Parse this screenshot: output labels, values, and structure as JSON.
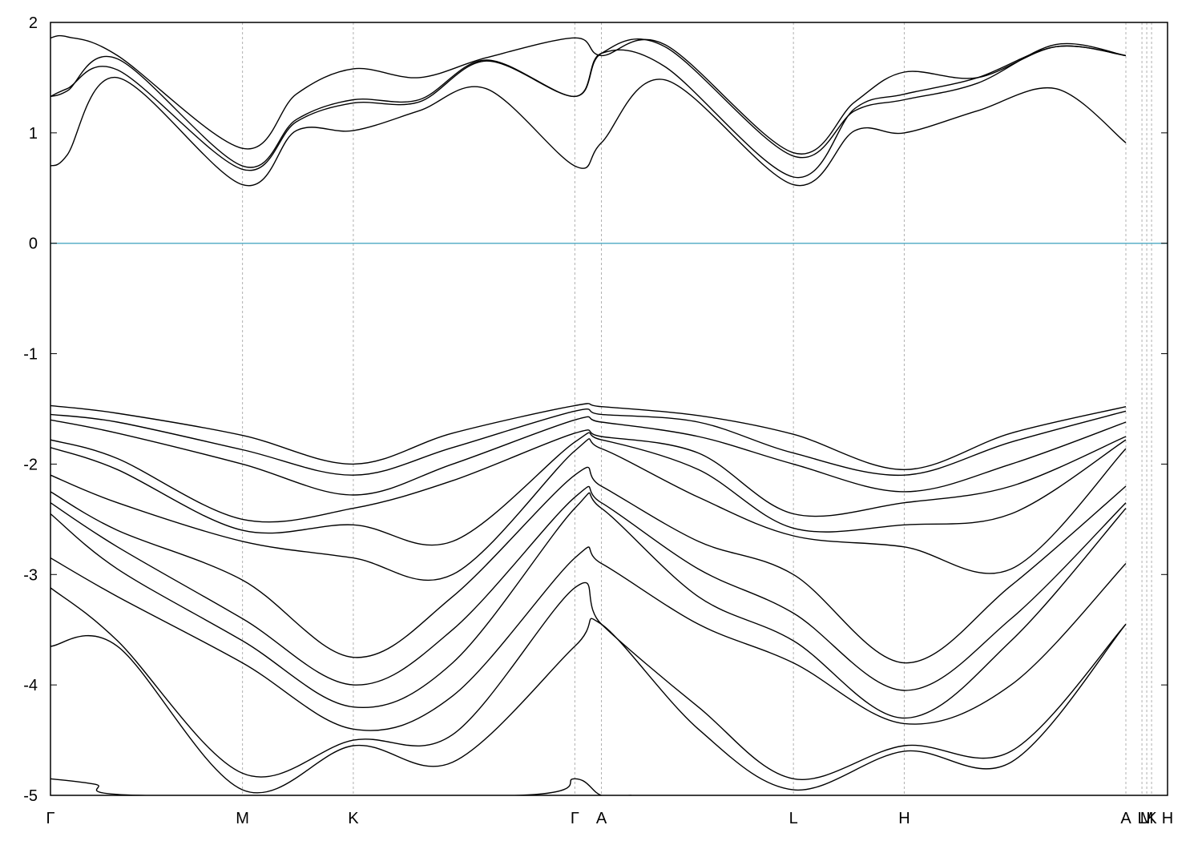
{
  "chart_data": {
    "type": "line",
    "title": "",
    "xlabel": "",
    "ylabel": "",
    "ylim": [
      -5,
      2
    ],
    "yticks": [
      2,
      1,
      0,
      -1,
      -2,
      -3,
      -4,
      -5
    ],
    "ytick_labels": [
      "2",
      "1",
      "0",
      "-1",
      "-2",
      "-3",
      "-4",
      "-5"
    ],
    "xlim": [
      0,
      1
    ],
    "kpoints": [
      {
        "label": "Γ",
        "x": 0.0
      },
      {
        "label": "M",
        "x": 0.1719
      },
      {
        "label": "K",
        "x": 0.2711
      },
      {
        "label": "Γ",
        "x": 0.4694
      },
      {
        "label": "A",
        "x": 0.4932
      },
      {
        "label": "L",
        "x": 0.6651
      },
      {
        "label": "H",
        "x": 0.7643
      },
      {
        "label": "A",
        "x": 0.9627
      },
      {
        "label": "L",
        "x": 0.9771
      },
      {
        "label": "M",
        "x": 0.9814
      },
      {
        "label": "K",
        "x": 0.9857
      },
      {
        "label": "H",
        "x": 1.0
      }
    ],
    "fermi_level": 0,
    "colors": {
      "bands": "#000000",
      "fermi": "#5bb0c8",
      "kline": "#b0b0b0"
    },
    "grid": "vertical dashed at k-points",
    "legend": "none",
    "bands": [
      {
        "x": [
          0,
          0.015,
          0.06,
          0.1719,
          0.22,
          0.2711,
          0.33,
          0.39,
          0.4694,
          0.4932,
          0.55,
          0.6651,
          0.72,
          0.7643,
          0.83,
          0.9,
          0.9627
        ],
        "values": [
          1.86,
          1.87,
          1.7,
          0.86,
          1.35,
          1.58,
          1.5,
          1.68,
          1.86,
          1.7,
          1.8,
          0.82,
          1.28,
          1.55,
          1.5,
          1.78,
          1.7
        ]
      },
      {
        "x": [
          0,
          0.015,
          0.06,
          0.1719,
          0.22,
          0.2711,
          0.33,
          0.39,
          0.4694,
          0.4932,
          0.55,
          0.6651,
          0.72,
          0.7643,
          0.83,
          0.9,
          0.9627
        ],
        "values": [
          1.33,
          1.38,
          1.67,
          0.7,
          1.12,
          1.3,
          1.3,
          1.66,
          1.33,
          1.72,
          1.78,
          0.79,
          1.2,
          1.3,
          1.45,
          1.8,
          1.7
        ]
      },
      {
        "x": [
          0,
          0.015,
          0.06,
          0.1719,
          0.22,
          0.2711,
          0.33,
          0.39,
          0.4694,
          0.4932,
          0.55,
          0.6651,
          0.72,
          0.7643,
          0.83,
          0.9,
          0.9627
        ],
        "values": [
          1.33,
          1.4,
          1.57,
          0.67,
          1.1,
          1.27,
          1.28,
          1.65,
          1.33,
          1.72,
          1.6,
          0.6,
          1.22,
          1.35,
          1.5,
          1.78,
          1.7
        ]
      },
      {
        "x": [
          0,
          0.015,
          0.06,
          0.1719,
          0.22,
          0.2711,
          0.33,
          0.39,
          0.4694,
          0.4932,
          0.55,
          0.6651,
          0.72,
          0.7643,
          0.83,
          0.9,
          0.9627
        ],
        "values": [
          0.7,
          0.8,
          1.5,
          0.53,
          1.02,
          1.02,
          1.2,
          1.4,
          0.7,
          0.91,
          1.48,
          0.53,
          1.02,
          1.0,
          1.2,
          1.4,
          0.91
        ]
      },
      {
        "x": [
          0,
          0.06,
          0.1719,
          0.2711,
          0.36,
          0.4694,
          0.4932,
          0.58,
          0.6651,
          0.7643,
          0.86,
          0.9627
        ],
        "values": [
          -1.47,
          -1.54,
          -1.74,
          -2.0,
          -1.72,
          -1.47,
          -1.48,
          -1.56,
          -1.73,
          -2.05,
          -1.72,
          -1.48
        ]
      },
      {
        "x": [
          0,
          0.06,
          0.1719,
          0.2711,
          0.36,
          0.4694,
          0.4932,
          0.58,
          0.6651,
          0.7643,
          0.86,
          0.9627
        ],
        "values": [
          -1.55,
          -1.62,
          -1.87,
          -2.1,
          -1.85,
          -1.52,
          -1.55,
          -1.62,
          -1.9,
          -2.1,
          -1.8,
          -1.52
        ]
      },
      {
        "x": [
          0,
          0.06,
          0.1719,
          0.2711,
          0.36,
          0.4694,
          0.4932,
          0.58,
          0.6651,
          0.7643,
          0.86,
          0.9627
        ],
        "values": [
          -1.6,
          -1.72,
          -2.0,
          -2.28,
          -2.0,
          -1.6,
          -1.62,
          -1.75,
          -2.0,
          -2.25,
          -2.0,
          -1.62
        ]
      },
      {
        "x": [
          0,
          0.06,
          0.1719,
          0.2711,
          0.36,
          0.4694,
          0.4932,
          0.58,
          0.6651,
          0.7643,
          0.86,
          0.9627
        ],
        "values": [
          -1.78,
          -1.95,
          -2.5,
          -2.4,
          -2.15,
          -1.72,
          -1.75,
          -1.9,
          -2.45,
          -2.35,
          -2.2,
          -1.75
        ]
      },
      {
        "x": [
          0,
          0.06,
          0.1719,
          0.2711,
          0.36,
          0.4694,
          0.4932,
          0.58,
          0.6651,
          0.7643,
          0.86,
          0.9627
        ],
        "values": [
          -1.85,
          -2.05,
          -2.6,
          -2.55,
          -2.7,
          -1.8,
          -1.78,
          -2.05,
          -2.58,
          -2.55,
          -2.45,
          -1.78
        ]
      },
      {
        "x": [
          0,
          0.06,
          0.1719,
          0.2711,
          0.36,
          0.4694,
          0.4932,
          0.58,
          0.6651,
          0.7643,
          0.86,
          0.9627
        ],
        "values": [
          -2.1,
          -2.35,
          -2.7,
          -2.85,
          -3.0,
          -1.88,
          -1.86,
          -2.3,
          -2.65,
          -2.75,
          -2.95,
          -1.86
        ]
      },
      {
        "x": [
          0,
          0.06,
          0.1719,
          0.2711,
          0.36,
          0.4694,
          0.4932,
          0.58,
          0.6651,
          0.7643,
          0.86,
          0.9627
        ],
        "values": [
          -2.25,
          -2.6,
          -3.05,
          -3.75,
          -3.2,
          -2.1,
          -2.2,
          -2.7,
          -3.0,
          -3.8,
          -3.1,
          -2.2
        ]
      },
      {
        "x": [
          0,
          0.06,
          0.1719,
          0.2711,
          0.36,
          0.4694,
          0.4932,
          0.58,
          0.6651,
          0.7643,
          0.86,
          0.9627
        ],
        "values": [
          -2.35,
          -2.75,
          -3.4,
          -4.0,
          -3.5,
          -2.3,
          -2.35,
          -2.95,
          -3.35,
          -4.05,
          -3.4,
          -2.35
        ]
      },
      {
        "x": [
          0,
          0.06,
          0.1719,
          0.2711,
          0.36,
          0.4694,
          0.4932,
          0.58,
          0.6651,
          0.7643,
          0.86,
          0.9627
        ],
        "values": [
          -2.45,
          -2.95,
          -3.6,
          -4.2,
          -3.8,
          -2.4,
          -2.4,
          -3.2,
          -3.6,
          -4.3,
          -3.6,
          -2.4
        ]
      },
      {
        "x": [
          0,
          0.06,
          0.1719,
          0.2711,
          0.36,
          0.4694,
          0.4932,
          0.58,
          0.6651,
          0.7643,
          0.86,
          0.9627
        ],
        "values": [
          -2.85,
          -3.2,
          -3.8,
          -4.4,
          -4.1,
          -2.85,
          -2.9,
          -3.45,
          -3.8,
          -4.35,
          -4.0,
          -2.9
        ]
      },
      {
        "x": [
          0,
          0.06,
          0.1719,
          0.2711,
          0.36,
          0.4694,
          0.4932,
          0.58,
          0.6651,
          0.7643,
          0.86,
          0.9627
        ],
        "values": [
          -3.12,
          -3.6,
          -4.8,
          -4.5,
          -4.45,
          -3.12,
          -3.45,
          -4.2,
          -4.85,
          -4.55,
          -4.6,
          -3.45
        ]
      },
      {
        "x": [
          0,
          0.06,
          0.1719,
          0.2711,
          0.36,
          0.4694,
          0.4932,
          0.58,
          0.6651,
          0.7643,
          0.86,
          0.9627
        ],
        "values": [
          -3.65,
          -3.65,
          -4.95,
          -4.55,
          -4.7,
          -3.65,
          -3.45,
          -4.4,
          -4.95,
          -4.6,
          -4.7,
          -3.45
        ]
      },
      {
        "x": [
          0,
          0.04,
          0.08,
          0.42,
          0.4694,
          0.4932,
          0.52
        ],
        "values": [
          -4.85,
          -4.9,
          -5.0,
          -5.0,
          -4.85,
          -5.0,
          -5.0
        ]
      }
    ]
  }
}
